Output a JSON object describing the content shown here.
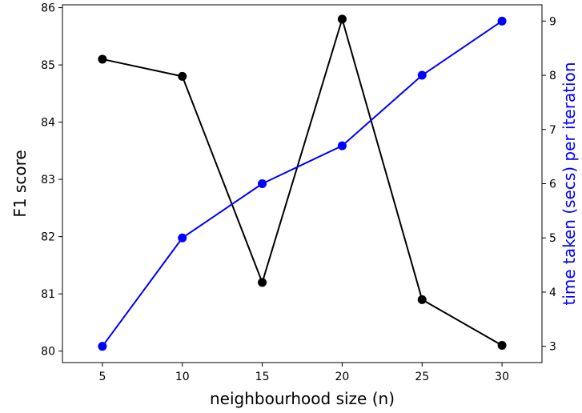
{
  "chart_data": {
    "type": "line",
    "x": [
      5,
      10,
      15,
      20,
      25,
      30
    ],
    "xlabel": "neighbourhood size (n)",
    "xlim": [
      2.5,
      32.5
    ],
    "xticks": [
      5,
      10,
      15,
      20,
      25,
      30
    ],
    "ylabel": "F1 score",
    "ylim": [
      79.8,
      86.05
    ],
    "yticks": [
      80,
      81,
      82,
      83,
      84,
      85,
      86
    ],
    "y2label": "time taken (secs) per iteration",
    "y2lim": [
      2.7,
      9.3
    ],
    "y2ticks": [
      3,
      4,
      5,
      6,
      7,
      8,
      9
    ],
    "grid": false,
    "series": [
      {
        "axis": "left",
        "color": "#000000",
        "values": [
          85.1,
          84.8,
          81.2,
          85.8,
          80.9,
          80.1
        ]
      },
      {
        "axis": "right",
        "color": "#0000ff",
        "values": [
          3,
          5,
          6,
          6.7,
          8,
          9
        ]
      }
    ],
    "label_colors": {
      "ylabel": "#000000",
      "y2label": "#0000ff"
    }
  }
}
